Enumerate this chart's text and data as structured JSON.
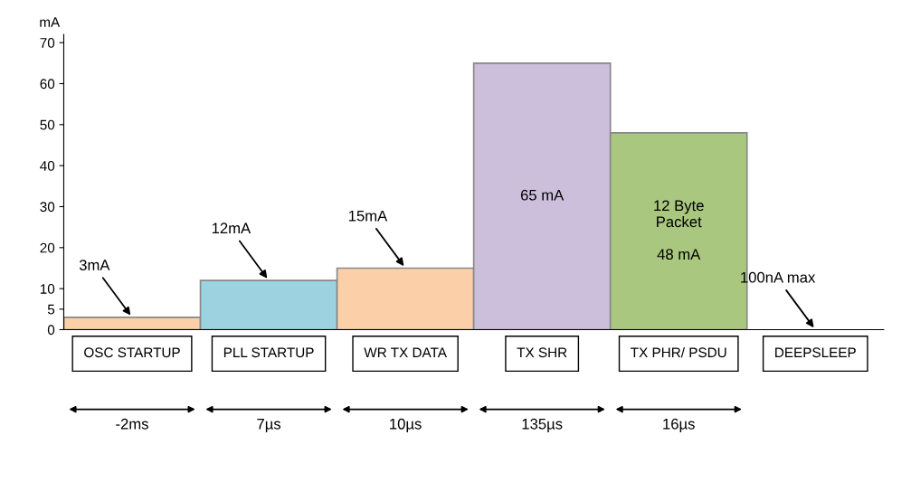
{
  "chart_data": {
    "type": "bar",
    "ylabel": "mA",
    "categories": [
      "OSC STARTUP",
      "PLL STARTUP",
      "WR TX DATA",
      "TX SHR",
      "TX PHR/ PSDU",
      "DEEPSLEEP"
    ],
    "values": [
      3,
      12,
      15,
      65,
      48,
      0
    ],
    "value_labels": [
      null,
      null,
      null,
      "65 mA",
      "12 Byte\nPacket\n\n48 mA",
      null
    ],
    "colors": [
      "#fbd0a8",
      "#9dd3e0",
      "#fbd0a8",
      "#cbbfdc",
      "#a9c77f",
      "#ffffff"
    ],
    "ylim": [
      0,
      72
    ],
    "yticks": [
      0,
      5,
      10,
      20,
      30,
      40,
      50,
      60,
      70
    ],
    "grid": false,
    "legend": false,
    "annotations": [
      {
        "text": "3mA",
        "x": "OSC STARTUP",
        "y": 3
      },
      {
        "text": "12mA",
        "x": "PLL STARTUP",
        "y": 12
      },
      {
        "text": "15mA",
        "x": "WR TX DATA",
        "y": 15
      },
      {
        "text": "100nA max",
        "x": "DEEPSLEEP",
        "y": 0
      },
      "-2ms",
      "7µs",
      "10µs",
      "135µs",
      "16µs"
    ]
  }
}
